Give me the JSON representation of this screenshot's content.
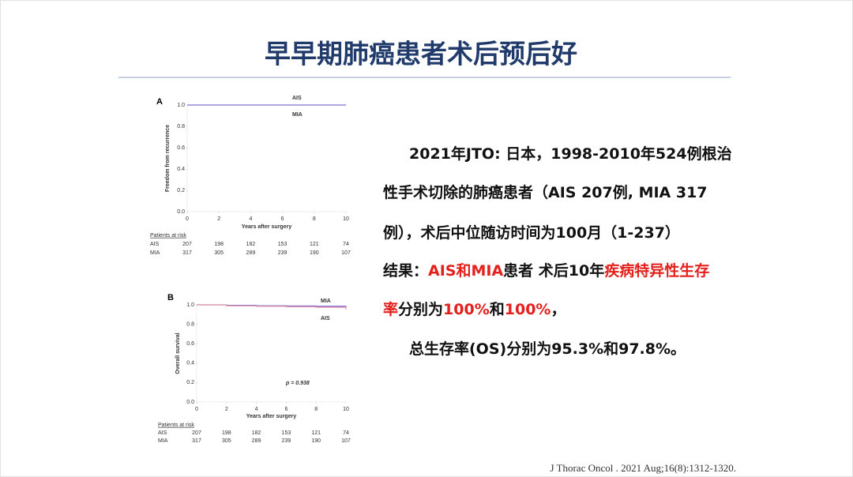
{
  "title": "早早期肺癌患者术后预后好",
  "figures": [
    {
      "type": "line",
      "panel": "A",
      "ylabel": "Freedom from recurrence",
      "xlabel": "Years after surgery",
      "x": [
        0,
        2,
        4,
        6,
        8,
        10
      ],
      "xlim": [
        0,
        10
      ],
      "ylim": [
        0,
        1
      ],
      "xticks": [
        0,
        2,
        4,
        6,
        8,
        10
      ],
      "yticks": [
        {
          "value": 0,
          "label": "0.0"
        },
        {
          "value": 0.2,
          "label": "0.2"
        },
        {
          "value": 0.4,
          "label": "0.4"
        },
        {
          "value": 0.6,
          "label": "0.6"
        },
        {
          "value": 0.8,
          "label": "0.8"
        },
        {
          "value": 1,
          "label": "1.0"
        }
      ],
      "series": [
        {
          "name": "AIS",
          "color": "#8f84d6",
          "values": [
            1,
            1,
            1,
            1,
            1,
            1
          ]
        },
        {
          "name": "MIA",
          "color": "#8f84d6",
          "values": [
            1,
            1,
            1,
            1,
            1,
            1
          ]
        }
      ],
      "risk_table": {
        "header": "Patients at risk",
        "rows": [
          {
            "name": "AIS",
            "values": [
              207,
              198,
              182,
              153,
              121,
              74
            ]
          },
          {
            "name": "MIA",
            "values": [
              317,
              305,
              289,
              239,
              190,
              107
            ]
          }
        ]
      }
    },
    {
      "type": "line",
      "panel": "B",
      "ylabel": "Overall survival",
      "xlabel": "Years after surgery",
      "annotation": "p = 0.938",
      "x": [
        0,
        2,
        4,
        6,
        8,
        10
      ],
      "xlim": [
        0,
        10
      ],
      "ylim": [
        0,
        1
      ],
      "xticks": [
        0,
        2,
        4,
        6,
        8,
        10
      ],
      "yticks": [
        {
          "value": 0,
          "label": "0.0"
        },
        {
          "value": 0.2,
          "label": "0.2"
        },
        {
          "value": 0.4,
          "label": "0.4"
        },
        {
          "value": 0.6,
          "label": "0.6"
        },
        {
          "value": 0.8,
          "label": "0.8"
        },
        {
          "value": 1,
          "label": "1.0"
        }
      ],
      "series": [
        {
          "name": "MIA",
          "color": "#6a5fcf",
          "values": [
            1,
            0.995,
            0.99,
            0.988,
            0.985,
            0.978
          ]
        },
        {
          "name": "AIS",
          "color": "#e89aae",
          "values": [
            1,
            0.99,
            0.985,
            0.98,
            0.975,
            0.953
          ]
        }
      ],
      "risk_table": {
        "header": "Patients at risk",
        "rows": [
          {
            "name": "AIS",
            "values": [
              207,
              198,
              182,
              153,
              121,
              74
            ]
          },
          {
            "name": "MIA",
            "values": [
              317,
              305,
              289,
              239,
              190,
              107
            ]
          }
        ]
      }
    }
  ],
  "text": {
    "lines": [
      [
        {
          "text": "2021年JTO: 日本，1998-2010年524例根治",
          "color": "#111111"
        }
      ],
      [
        {
          "text": "性手术切除的肺癌患者（AIS 207例, MIA 317",
          "color": "#111111"
        }
      ],
      [
        {
          "text": "例），术后中位随访时间为100月（1-237）",
          "color": "#111111"
        }
      ],
      [
        {
          "text": "结果：",
          "color": "#111111"
        },
        {
          "text": "AIS和MIA",
          "color": "#e3201b"
        },
        {
          "text": "患者 术后10年",
          "color": "#111111"
        },
        {
          "text": "疾病特异性生存",
          "color": "#e3201b"
        }
      ],
      [
        {
          "text": "率",
          "color": "#e3201b"
        },
        {
          "text": "分别为",
          "color": "#111111"
        },
        {
          "text": "100%",
          "color": "#e3201b"
        },
        {
          "text": "和",
          "color": "#111111"
        },
        {
          "text": "100%",
          "color": "#e3201b"
        },
        {
          "text": "，",
          "color": "#111111"
        }
      ],
      [
        {
          "text": "总生存率(OS)分别为95.3%和97.8%。",
          "color": "#111111"
        }
      ]
    ]
  },
  "citation": "J Thorac Oncol . 2021 Aug;16(8):1312-1320."
}
